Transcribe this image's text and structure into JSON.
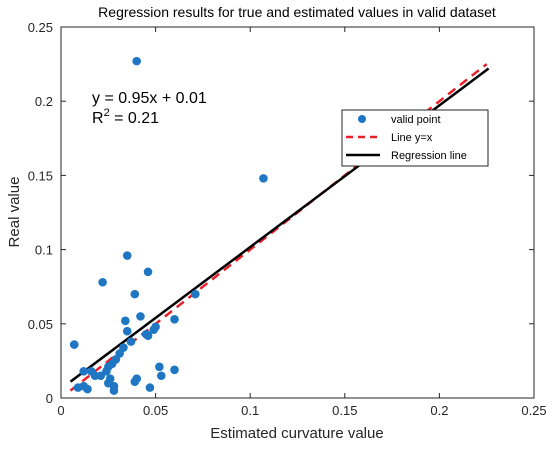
{
  "chart_data": {
    "type": "scatter",
    "title": "Regression results for true and estimated values in valid dataset",
    "xlabel": "Estimated curvature value",
    "ylabel": "Real value",
    "xlim": [
      0,
      0.25
    ],
    "ylim": [
      0,
      0.25
    ],
    "x_ticks": [
      "0",
      "0.05",
      "0.1",
      "0.15",
      "0.2",
      "0.25"
    ],
    "y_ticks": [
      "0",
      "0.05",
      "0.1",
      "0.15",
      "0.2",
      "0.25"
    ],
    "grid": false,
    "legend_position": "right",
    "annotation": {
      "equation": "y = 0.95x + 0.01",
      "r_label": "R",
      "r_exponent": "2",
      "r_value": " = 0.21"
    },
    "series": [
      {
        "name": "valid point",
        "kind": "points",
        "color": "#1f77c4",
        "points": [
          [
            0.04,
            0.227
          ],
          [
            0.107,
            0.148
          ],
          [
            0.035,
            0.096
          ],
          [
            0.046,
            0.085
          ],
          [
            0.022,
            0.078
          ],
          [
            0.039,
            0.07
          ],
          [
            0.071,
            0.07
          ],
          [
            0.042,
            0.055
          ],
          [
            0.06,
            0.053
          ],
          [
            0.034,
            0.052
          ],
          [
            0.05,
            0.048
          ],
          [
            0.049,
            0.046
          ],
          [
            0.035,
            0.045
          ],
          [
            0.045,
            0.043
          ],
          [
            0.046,
            0.042
          ],
          [
            0.037,
            0.038
          ],
          [
            0.007,
            0.036
          ],
          [
            0.033,
            0.034
          ],
          [
            0.031,
            0.03
          ],
          [
            0.029,
            0.026
          ],
          [
            0.027,
            0.023
          ],
          [
            0.025,
            0.021
          ],
          [
            0.024,
            0.018
          ],
          [
            0.052,
            0.021
          ],
          [
            0.06,
            0.019
          ],
          [
            0.016,
            0.018
          ],
          [
            0.012,
            0.018
          ],
          [
            0.021,
            0.015
          ],
          [
            0.053,
            0.015
          ],
          [
            0.026,
            0.013
          ],
          [
            0.04,
            0.013
          ],
          [
            0.039,
            0.011
          ],
          [
            0.025,
            0.01
          ],
          [
            0.028,
            0.008
          ],
          [
            0.012,
            0.008
          ],
          [
            0.009,
            0.007
          ],
          [
            0.014,
            0.006
          ],
          [
            0.047,
            0.007
          ],
          [
            0.028,
            0.005
          ],
          [
            0.018,
            0.015
          ]
        ]
      },
      {
        "name": "Line y=x",
        "kind": "line",
        "style": "dashed",
        "color": "#e8202a",
        "x": [
          0.005,
          0.225
        ],
        "y": [
          0.005,
          0.225
        ]
      },
      {
        "name": "Regression line",
        "kind": "line",
        "style": "solid",
        "color": "#000000",
        "x": [
          0.005,
          0.226
        ],
        "y": [
          0.011,
          0.222
        ]
      }
    ]
  }
}
